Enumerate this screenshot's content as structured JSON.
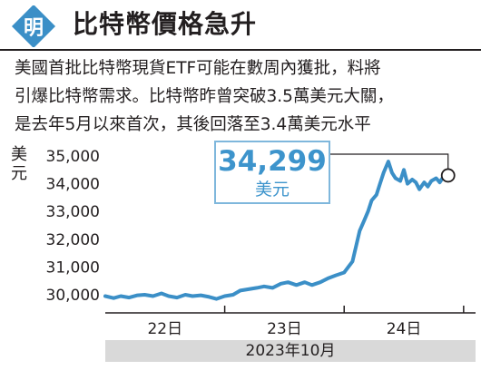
{
  "headline": "比特幣價格急升",
  "logo": {
    "char": "明",
    "icon": "ming-pao-logo-icon",
    "color": "#3b8fc7"
  },
  "paragraph": {
    "lines": [
      "美國首批比特幣現貨ETF可能在數周內獲批，料將",
      "引爆比特幣需求。比特幣昨曾突破3.5萬美元大關，",
      "是去年5月以來首次，其後回落至3.4萬美元水平"
    ]
  },
  "callout": {
    "value": "34,299",
    "unit": "美元"
  },
  "chart_data": {
    "type": "line",
    "title": "",
    "ylabel": "美元",
    "xlabel": "2023年10月",
    "ylim": [
      29800,
      35200
    ],
    "y_ticks": [
      "35,000",
      "34,000",
      "33,000",
      "32,000",
      "31,000",
      "30,000"
    ],
    "y_tick_values": [
      35000,
      34000,
      33000,
      32000,
      31000,
      30000
    ],
    "x_ticks": [
      "22日",
      "23日",
      "24日"
    ],
    "x_tick_values": [
      22.5,
      23.5,
      24.5
    ],
    "xlim": [
      22.0,
      25.1
    ],
    "grid": false,
    "line_color": "#3b8fc7",
    "series": [
      {
        "x": [
          22.0,
          22.07,
          22.13,
          22.2,
          22.27,
          22.33,
          22.4,
          22.47,
          22.53,
          22.6,
          22.67,
          22.73,
          22.8,
          22.87,
          22.93,
          23.0,
          23.07,
          23.13,
          23.2,
          23.27,
          23.33,
          23.4,
          23.47,
          23.53,
          23.6,
          23.67,
          23.73,
          23.8,
          23.87,
          23.93,
          24.0,
          24.07,
          24.13,
          24.17,
          24.2,
          24.23,
          24.27,
          24.3,
          24.33,
          24.37,
          24.4,
          24.43,
          24.47,
          24.5,
          24.53,
          24.57,
          24.6,
          24.63,
          24.67,
          24.7,
          24.73,
          24.77,
          24.8,
          24.83,
          24.87
        ],
        "y": [
          29950,
          29880,
          29950,
          29900,
          29980,
          30000,
          29950,
          30050,
          29950,
          29900,
          30000,
          29950,
          29980,
          29920,
          29850,
          29950,
          30000,
          30150,
          30200,
          30250,
          30300,
          30250,
          30400,
          30450,
          30350,
          30450,
          30350,
          30450,
          30600,
          30700,
          30800,
          31200,
          32300,
          32700,
          33000,
          33400,
          33600,
          34000,
          34400,
          34800,
          34400,
          34200,
          34100,
          34500,
          34000,
          34150,
          34050,
          33800,
          34050,
          33900,
          34100,
          34200,
          34050,
          34250,
          34299
        ]
      }
    ],
    "last_point": {
      "x": 24.87,
      "y": 34299
    }
  }
}
